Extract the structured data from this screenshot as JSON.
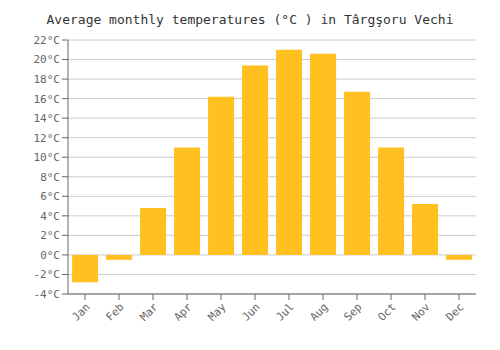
{
  "chart_data": {
    "type": "bar",
    "title": "Average monthly temperatures (°C ) in Târgşoru Vechi",
    "categories": [
      "Jan",
      "Feb",
      "Mar",
      "Apr",
      "May",
      "Jun",
      "Jul",
      "Aug",
      "Sep",
      "Oct",
      "Nov",
      "Dec"
    ],
    "values": [
      -2.8,
      -0.5,
      4.8,
      11.0,
      16.2,
      19.4,
      21.0,
      20.6,
      16.7,
      11.0,
      5.2,
      -0.5
    ],
    "color": "#FFC020",
    "ylim": [
      -4,
      22
    ],
    "yticks": [
      {
        "value": 22,
        "label": "22°C"
      },
      {
        "value": 20,
        "label": "20°C"
      },
      {
        "value": 18,
        "label": "18°C"
      },
      {
        "value": 16,
        "label": "16°C"
      },
      {
        "value": 14,
        "label": "14°C"
      },
      {
        "value": 12,
        "label": "12°C"
      },
      {
        "value": 10,
        "label": "10°C"
      },
      {
        "value": 8,
        "label": "8°C"
      },
      {
        "value": 6,
        "label": "6°C"
      },
      {
        "value": 4,
        "label": "4°C"
      },
      {
        "value": 2,
        "label": "2°C"
      },
      {
        "value": 0,
        "label": "0°C"
      },
      {
        "value": -2,
        "label": "-2°C"
      },
      {
        "value": -4,
        "label": "-4°C"
      }
    ],
    "grid": true
  }
}
